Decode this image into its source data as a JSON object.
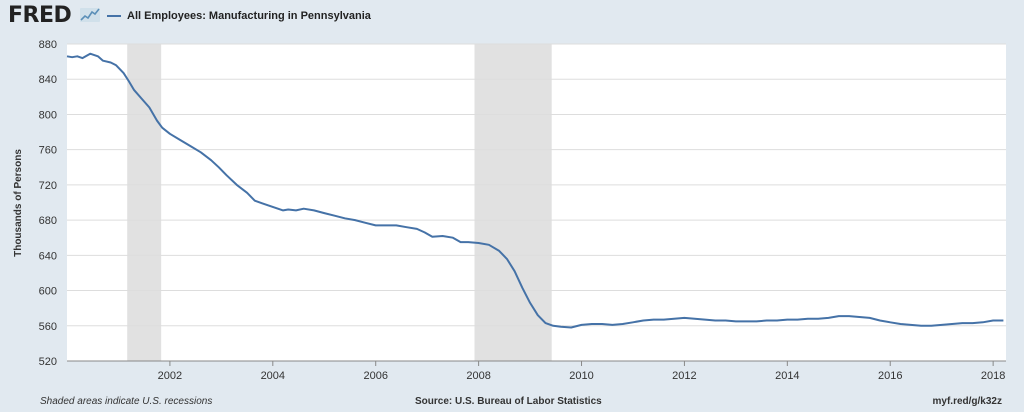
{
  "header": {
    "logo_text": "FRED",
    "logo_icon": "fred-trend-chart-icon",
    "series_title": "All Employees: Manufacturing in Pennsylvania"
  },
  "footer": {
    "recession_note": "Shaded areas indicate U.S. recessions",
    "source": "Source: U.S. Bureau of Labor Statistics",
    "short_url": "myf.red/g/k32z"
  },
  "colors": {
    "line": "#4572a7",
    "recession_band": "#e1e1e1",
    "background": "#e1e9f0",
    "plot_background": "#ffffff",
    "grid": "#dddddd"
  },
  "chart_data": {
    "type": "line",
    "title": "",
    "xlabel": "",
    "ylabel": "Thousands of Persons",
    "xlim": [
      2000.0,
      2018.25
    ],
    "ylim": [
      520,
      880
    ],
    "y_ticks": [
      520,
      560,
      600,
      640,
      680,
      720,
      760,
      800,
      840,
      880
    ],
    "x_ticks": [
      2002,
      2004,
      2006,
      2008,
      2010,
      2012,
      2014,
      2016,
      2018
    ],
    "grid": true,
    "legend_position": "top-left",
    "recessions": [
      [
        2001.17,
        2001.83
      ],
      [
        2007.92,
        2009.42
      ]
    ],
    "series": [
      {
        "name": "All Employees: Manufacturing in Pennsylvania",
        "x": [
          2000.0,
          2000.1,
          2000.2,
          2000.3,
          2000.45,
          2000.6,
          2000.7,
          2000.85,
          2000.95,
          2001.1,
          2001.2,
          2001.3,
          2001.45,
          2001.6,
          2001.75,
          2001.85,
          2002.0,
          2002.2,
          2002.4,
          2002.6,
          2002.8,
          2002.95,
          2003.1,
          2003.3,
          2003.5,
          2003.65,
          2003.8,
          2004.0,
          2004.2,
          2004.3,
          2004.45,
          2004.6,
          2004.8,
          2005.0,
          2005.2,
          2005.4,
          2005.6,
          2005.8,
          2006.0,
          2006.2,
          2006.4,
          2006.6,
          2006.8,
          2006.95,
          2007.1,
          2007.3,
          2007.5,
          2007.65,
          2007.8,
          2008.0,
          2008.2,
          2008.4,
          2008.55,
          2008.7,
          2008.85,
          2009.0,
          2009.15,
          2009.3,
          2009.45,
          2009.6,
          2009.8,
          2010.0,
          2010.2,
          2010.4,
          2010.6,
          2010.8,
          2011.0,
          2011.2,
          2011.4,
          2011.6,
          2011.8,
          2012.0,
          2012.2,
          2012.4,
          2012.6,
          2012.8,
          2013.0,
          2013.2,
          2013.4,
          2013.6,
          2013.8,
          2014.0,
          2014.2,
          2014.4,
          2014.6,
          2014.8,
          2015.0,
          2015.2,
          2015.4,
          2015.6,
          2015.8,
          2016.0,
          2016.2,
          2016.4,
          2016.6,
          2016.8,
          2017.0,
          2017.2,
          2017.4,
          2017.6,
          2017.8,
          2018.0,
          2018.2
        ],
        "values": [
          866,
          865,
          866,
          864,
          869,
          866,
          861,
          859,
          856,
          847,
          838,
          828,
          818,
          808,
          793,
          785,
          778,
          771,
          764,
          757,
          748,
          740,
          731,
          720,
          711,
          702,
          699,
          695,
          691,
          692,
          691,
          693,
          691,
          688,
          685,
          682,
          680,
          677,
          674,
          674,
          674,
          672,
          670,
          666,
          661,
          662,
          660,
          655,
          655,
          654,
          652,
          645,
          636,
          622,
          603,
          586,
          572,
          563,
          560,
          559,
          558,
          561,
          562,
          562,
          561,
          562,
          564,
          566,
          567,
          567,
          568,
          569,
          568,
          567,
          566,
          566,
          565,
          565,
          565,
          566,
          566,
          567,
          567,
          568,
          568,
          569,
          571,
          571,
          570,
          569,
          566,
          564,
          562,
          561,
          560,
          560,
          561,
          562,
          563,
          563,
          564,
          566,
          566
        ]
      }
    ]
  }
}
